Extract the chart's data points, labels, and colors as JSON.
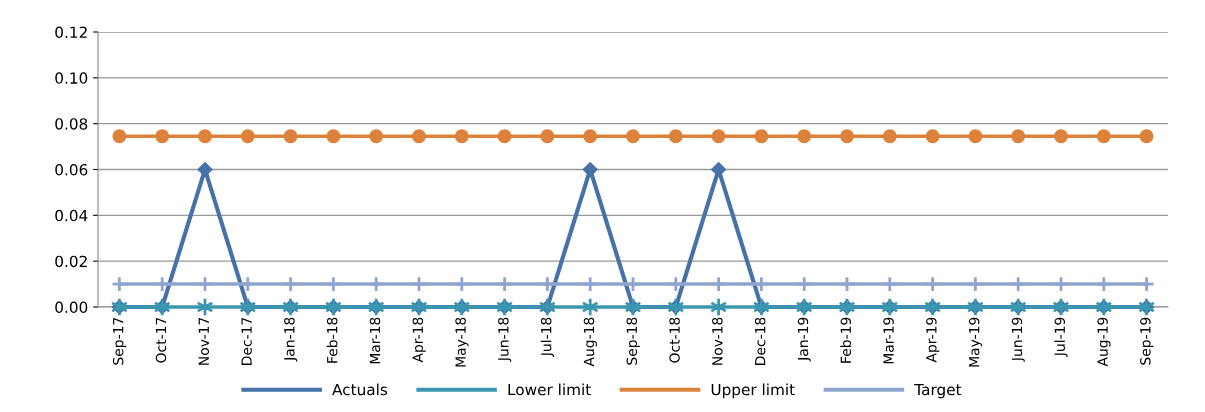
{
  "chart_data": {
    "type": "line",
    "categories": [
      "Sep-17",
      "Oct-17",
      "Nov-17",
      "Dec-17",
      "Jan-18",
      "Feb-18",
      "Mar-18",
      "Apr-18",
      "May-18",
      "Jun-18",
      "Jul-18",
      "Aug-18",
      "Sep-18",
      "Oct-18",
      "Nov-18",
      "Dec-18",
      "Jan-19",
      "Feb-19",
      "Mar-19",
      "Apr-19",
      "May-19",
      "Jun-19",
      "Jul-19",
      "Aug-19",
      "Sep-19"
    ],
    "series": [
      {
        "name": "Actuals",
        "color": "#4672aa",
        "marker": "diamond",
        "values": [
          0,
          0,
          0.06,
          0,
          0,
          0,
          0,
          0,
          0,
          0,
          0,
          0.06,
          0,
          0,
          0.06,
          0,
          0,
          0,
          0,
          0,
          0,
          0,
          0,
          0,
          0
        ]
      },
      {
        "name": "Lower limit",
        "color": "#3b96b0",
        "marker": "cross",
        "values": [
          0,
          0,
          0,
          0,
          0,
          0,
          0,
          0,
          0,
          0,
          0,
          0,
          0,
          0,
          0,
          0,
          0,
          0,
          0,
          0,
          0,
          0,
          0,
          0,
          0
        ]
      },
      {
        "name": "Upper limit",
        "color": "#dc823a",
        "marker": "circle",
        "values": [
          0.0745,
          0.0745,
          0.0745,
          0.0745,
          0.0745,
          0.0745,
          0.0745,
          0.0745,
          0.0745,
          0.0745,
          0.0745,
          0.0745,
          0.0745,
          0.0745,
          0.0745,
          0.0745,
          0.0745,
          0.0745,
          0.0745,
          0.0745,
          0.0745,
          0.0745,
          0.0745,
          0.0745,
          0.0745
        ]
      },
      {
        "name": "Target",
        "color": "#8ea5cf",
        "marker": "cross",
        "values": [
          0.01,
          0.01,
          0.01,
          0.01,
          0.01,
          0.01,
          0.01,
          0.01,
          0.01,
          0.01,
          0.01,
          0.01,
          0.01,
          0.01,
          0.01,
          0.01,
          0.01,
          0.01,
          0.01,
          0.01,
          0.01,
          0.01,
          0.01,
          0.01,
          0.01
        ]
      }
    ],
    "ylim": [
      0,
      0.12
    ],
    "yticks": [
      {
        "value": 0,
        "label": "0.00"
      },
      {
        "value": 0.02,
        "label": "0.02"
      },
      {
        "value": 0.04,
        "label": "0.04"
      },
      {
        "value": 0.06,
        "label": "0.06"
      },
      {
        "value": 0.08,
        "label": "0.08"
      },
      {
        "value": 0.1,
        "label": "0.10"
      },
      {
        "value": 0.12,
        "label": "0.12"
      }
    ],
    "grid": "y",
    "legend": "bottom",
    "line_style": "solid"
  }
}
